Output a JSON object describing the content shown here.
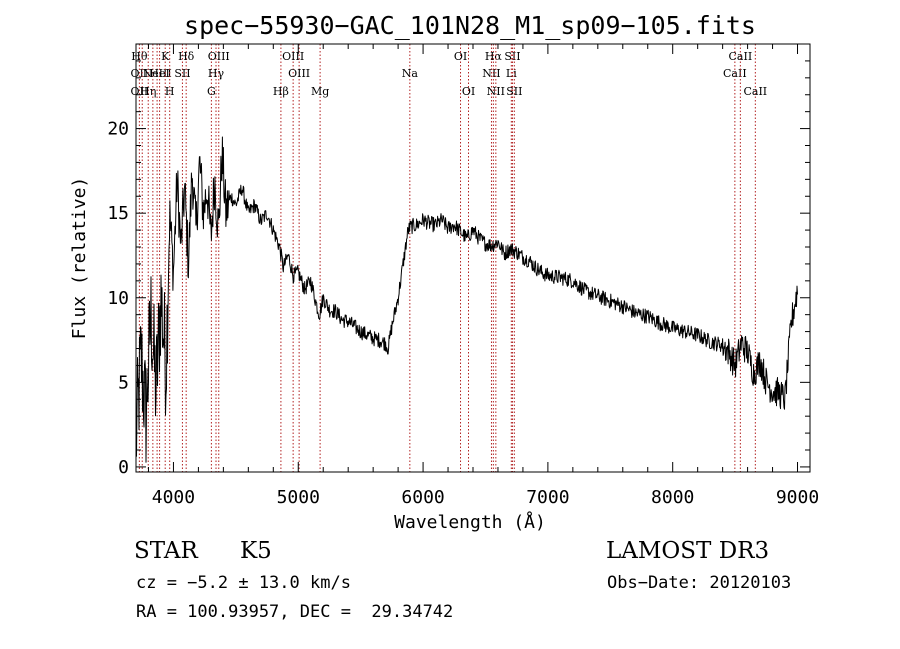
{
  "chart_data": {
    "type": "line",
    "title": "spec−55930−GAC_101N28_M1_sp09−105.fits",
    "xlabel": "Wavelength (Å)",
    "ylabel": "Flux (relative)",
    "xlim": [
      3700,
      9100
    ],
    "ylim": [
      -0.3,
      25
    ],
    "xticks": [
      4000,
      5000,
      6000,
      7000,
      8000,
      9000
    ],
    "yticks": [
      0,
      5,
      10,
      15,
      20
    ],
    "grid": false,
    "series": [
      {
        "name": "flux",
        "x": [
          3700,
          3740,
          3780,
          3820,
          3860,
          3900,
          3940,
          3970,
          4000,
          4030,
          4060,
          4090,
          4120,
          4150,
          4180,
          4210,
          4240,
          4270,
          4300,
          4330,
          4360,
          4390,
          4420,
          4460,
          4500,
          4550,
          4600,
          4650,
          4700,
          4750,
          4800,
          4850,
          4880,
          4920,
          4960,
          5000,
          5050,
          5100,
          5150,
          5170,
          5200,
          5250,
          5300,
          5350,
          5400,
          5450,
          5500,
          5550,
          5600,
          5650,
          5700,
          5720,
          5750,
          5800,
          5850,
          5880,
          5900,
          5950,
          6000,
          6050,
          6100,
          6150,
          6200,
          6250,
          6300,
          6350,
          6400,
          6450,
          6500,
          6550,
          6600,
          6650,
          6700,
          6750,
          6800,
          6850,
          6900,
          6950,
          7000,
          7100,
          7200,
          7300,
          7400,
          7500,
          7600,
          7700,
          7800,
          7900,
          8000,
          8100,
          8200,
          8300,
          8400,
          8450,
          8500,
          8550,
          8600,
          8650,
          8700,
          8750,
          8800,
          8850,
          8900,
          8950,
          9000
        ],
        "values": [
          1.5,
          6.5,
          3,
          9,
          4.5,
          10,
          6,
          15,
          11.5,
          17,
          13,
          16.5,
          12,
          17.5,
          14,
          18,
          15,
          16.5,
          13.5,
          17,
          14,
          18.5,
          15,
          16,
          15.5,
          16.5,
          15,
          15.5,
          14.5,
          15,
          14,
          13,
          11.8,
          12.5,
          11.3,
          11.5,
          10.5,
          11,
          9.5,
          9,
          10,
          9.3,
          9.2,
          8.7,
          8.6,
          8.3,
          8,
          7.8,
          7.6,
          7.5,
          7.3,
          7,
          8.3,
          10,
          12.5,
          14,
          14.2,
          14.3,
          14.6,
          14.4,
          14.3,
          14.6,
          14.1,
          14.3,
          13.9,
          13.5,
          14,
          13.5,
          13.2,
          13.1,
          13.3,
          12.6,
          12.9,
          12.7,
          12.4,
          12.2,
          11.8,
          11.5,
          11.3,
          11.2,
          11,
          10.4,
          10.1,
          9.8,
          9.5,
          9.1,
          8.9,
          8.5,
          8.2,
          8,
          7.8,
          7.4,
          7.2,
          6.8,
          6,
          7.3,
          6.8,
          5.5,
          6.3,
          5,
          4.5,
          4.4,
          4,
          8.5,
          10.5
        ]
      }
    ],
    "lines": [
      {
        "wave": 3727,
        "top": "Hθ",
        "mid": "OII",
        "bot": "OII"
      },
      {
        "wave": 3750,
        "top": "",
        "mid": "",
        "bot": ""
      },
      {
        "wave": 3798,
        "top": "",
        "mid": "",
        "bot": "Hη"
      },
      {
        "wave": 3835,
        "top": "",
        "mid": "",
        "bot": ""
      },
      {
        "wave": 3869,
        "top": "",
        "mid": "NeIII",
        "bot": ""
      },
      {
        "wave": 3889,
        "top": "",
        "mid": "HeI",
        "bot": ""
      },
      {
        "wave": 3934,
        "top": "K",
        "mid": "",
        "bot": ""
      },
      {
        "wave": 3970,
        "top": "",
        "mid": "",
        "bot": "H"
      },
      {
        "wave": 4072,
        "top": "",
        "mid": "SII",
        "bot": ""
      },
      {
        "wave": 4102,
        "top": "Hδ",
        "mid": "",
        "bot": ""
      },
      {
        "wave": 4304,
        "top": "",
        "mid": "",
        "bot": "G"
      },
      {
        "wave": 4341,
        "top": "",
        "mid": "Hγ",
        "bot": ""
      },
      {
        "wave": 4363,
        "top": "OIII",
        "mid": "",
        "bot": ""
      },
      {
        "wave": 4861,
        "top": "",
        "mid": "",
        "bot": "Hβ"
      },
      {
        "wave": 4959,
        "top": "OIII",
        "mid": "",
        "bot": ""
      },
      {
        "wave": 5007,
        "top": "",
        "mid": "OIII",
        "bot": ""
      },
      {
        "wave": 5175,
        "top": "",
        "mid": "",
        "bot": "Mg"
      },
      {
        "wave": 5894,
        "top": "",
        "mid": "Na",
        "bot": ""
      },
      {
        "wave": 6300,
        "top": "OI",
        "mid": "",
        "bot": ""
      },
      {
        "wave": 6364,
        "top": "",
        "mid": "",
        "bot": "OI"
      },
      {
        "wave": 6548,
        "top": "",
        "mid": "NII",
        "bot": ""
      },
      {
        "wave": 6563,
        "top": "Hα",
        "mid": "",
        "bot": ""
      },
      {
        "wave": 6583,
        "top": "",
        "mid": "",
        "bot": "NII"
      },
      {
        "wave": 6707,
        "top": "",
        "mid": "Li",
        "bot": ""
      },
      {
        "wave": 6716,
        "top": "SII",
        "mid": "",
        "bot": ""
      },
      {
        "wave": 6731,
        "top": "",
        "mid": "",
        "bot": "SII"
      },
      {
        "wave": 8498,
        "top": "",
        "mid": "CaII",
        "bot": ""
      },
      {
        "wave": 8542,
        "top": "CaII",
        "mid": "",
        "bot": ""
      },
      {
        "wave": 8662,
        "top": "",
        "mid": "",
        "bot": "CaII"
      }
    ]
  },
  "info": {
    "class": "STAR",
    "subclass": "K5",
    "cz": "cz = −5.2 ± 13.0 km/s",
    "coords": "RA = 100.93957, DEC =  29.34742",
    "survey": "LAMOST DR3",
    "obsdate": "Obs−Date: 20120103"
  },
  "colors": {
    "axis": "#000000",
    "spectrum": "#000000",
    "line_marker": "#b22222"
  }
}
